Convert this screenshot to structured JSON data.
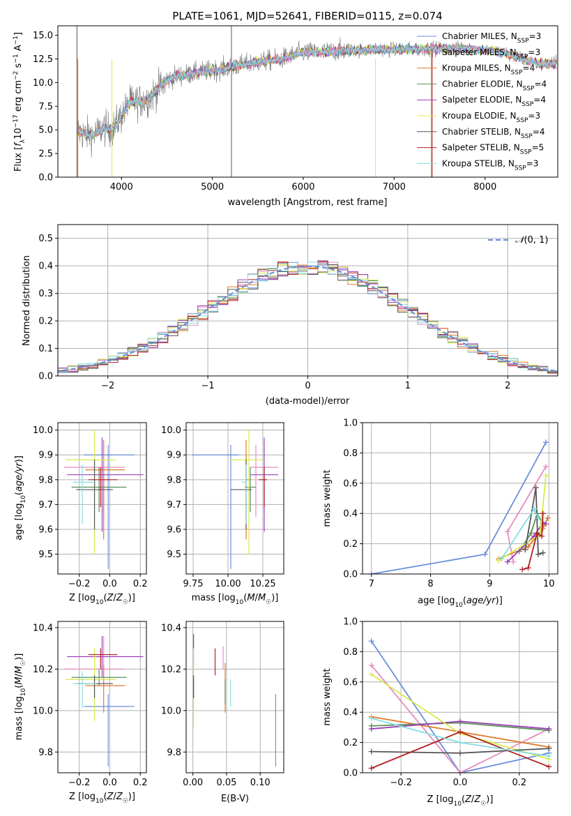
{
  "colors": {
    "palette": [
      "#6a8fdb",
      "#e58bbf",
      "#e07b2b",
      "#5a8f5a",
      "#9b3fb6",
      "#d8ea4c",
      "#555555",
      "#b11f23",
      "#85dde0"
    ],
    "normal_line": "#6a8fdb",
    "grid": "#b0b0b0",
    "spectrum_data": "#808080"
  },
  "chart_data": [
    {
      "id": "spectrum",
      "type": "line",
      "title": "PLATE=1061, MJD=52641, FIBERID=0115, z=0.074",
      "xlabel": "wavelength [Angstrom, rest frame]",
      "ylabel": "Flux [f_λ 10^-17 erg cm^-2 s^-1 A^-1]",
      "xlim": [
        3300,
        8800
      ],
      "ylim": [
        0,
        16
      ],
      "xticks": [
        4000,
        5000,
        6000,
        7000,
        8000
      ],
      "yticks": [
        0.0,
        2.5,
        5.0,
        7.5,
        10.0,
        12.5,
        15.0
      ],
      "legend_position": "upper-right",
      "grid": false,
      "legend": [
        "Chabrier MILES, N_SSP=3",
        "Salpeter MILES, N_SSP=3",
        "Kroupa MILES, N_SSP=4",
        "Chabrier ELODIE, N_SSP=4",
        "Salpeter ELODIE, N_SSP=4",
        "Kroupa ELODIE, N_SSP=3",
        "Chabrier STELIB, N_SSP=4",
        "Salpeter STELIB, N_SSP=5",
        "Kroupa STELIB, N_SSP=3"
      ],
      "continuum": {
        "x": [
          3500,
          3600,
          3700,
          3800,
          3900,
          4000,
          4100,
          4200,
          4300,
          4400,
          4500,
          4600,
          4800,
          5000,
          5200,
          5400,
          5600,
          5800,
          6000,
          6200,
          6400,
          6600,
          6800,
          7000,
          7200,
          7400,
          7600,
          7800,
          8000,
          8200,
          8400,
          8600
        ],
        "y": [
          5.0,
          4.5,
          4.5,
          5.2,
          5.0,
          6.5,
          8.0,
          8.0,
          8.3,
          9.3,
          10.2,
          10.7,
          11.0,
          11.3,
          11.6,
          12.0,
          12.3,
          12.6,
          13.2,
          13.2,
          13.4,
          13.4,
          13.5,
          13.5,
          13.5,
          13.6,
          13.6,
          13.6,
          13.4,
          13.2,
          12.5,
          12.0
        ]
      }
    },
    {
      "id": "residuals",
      "type": "line",
      "xlabel": "(data-model)/error",
      "ylabel": "Normed distribution",
      "xlim": [
        -2.5,
        2.5
      ],
      "ylim": [
        0,
        0.55
      ],
      "xticks": [
        -2,
        -1,
        0,
        1,
        2
      ],
      "yticks": [
        0.0,
        0.1,
        0.2,
        0.3,
        0.4,
        0.5
      ],
      "legend": [
        "𝒩(0,1)"
      ],
      "legend_position": "upper-right",
      "grid": true,
      "bin_width": 0.1,
      "normal_peak": 0.399
    },
    {
      "id": "age-vs-Z",
      "type": "scatter",
      "xlabel": "Z [log10(Z/Z☉)]",
      "ylabel": "age [log10(age/yr)]",
      "xlim": [
        -0.34,
        0.24
      ],
      "ylim": [
        9.42,
        10.03
      ],
      "xticks": [
        -0.2,
        0.0,
        0.2
      ],
      "yticks": [
        9.5,
        9.6,
        9.7,
        9.8,
        9.9,
        10.0
      ],
      "grid": true,
      "points": [
        {
          "x": -0.01,
          "xerr": [
            0.16,
            0.17
          ],
          "y": 9.9,
          "yerr": [
            0.46,
            0.04
          ]
        },
        {
          "x": -0.04,
          "xerr": [
            0.26,
            0.14
          ],
          "y": 9.85,
          "yerr": [
            0.2,
            0.0
          ]
        },
        {
          "x": -0.04,
          "xerr": [
            0.12,
            0.14
          ],
          "y": 9.84,
          "yerr": [
            0.28,
            0.12
          ]
        },
        {
          "x": -0.07,
          "xerr": [
            0.18,
            0.18
          ],
          "y": 9.77,
          "yerr": [
            0.1,
            0.08
          ]
        },
        {
          "x": -0.05,
          "xerr": [
            0.23,
            0.27
          ],
          "y": 9.82,
          "yerr": [
            0.23,
            0.15
          ]
        },
        {
          "x": -0.1,
          "xerr": [
            0.19,
            0.14
          ],
          "y": 9.88,
          "yerr": [
            0.38,
            0.12
          ]
        },
        {
          "x": -0.1,
          "xerr": [
            0.12,
            0.12
          ],
          "y": 9.76,
          "yerr": [
            0.16,
            0.12
          ]
        },
        {
          "x": -0.06,
          "xerr": [
            0.08,
            0.11
          ],
          "y": 9.8,
          "yerr": [
            0.11,
            0.05
          ]
        },
        {
          "x": -0.18,
          "xerr": [
            0.06,
            0.09
          ],
          "y": 9.79,
          "yerr": [
            0.17,
            0.07
          ]
        }
      ]
    },
    {
      "id": "age-vs-mass",
      "type": "scatter",
      "xlabel": "mass [log10(M/M☉)]",
      "ylabel": "",
      "xlim": [
        9.7,
        10.4
      ],
      "ylim": [
        9.42,
        10.03
      ],
      "xticks": [
        9.75,
        10.0,
        10.25
      ],
      "yticks": [
        9.5,
        9.6,
        9.7,
        9.8,
        9.9,
        10.0
      ],
      "grid": true,
      "points": [
        {
          "x": 10.02,
          "xerr": [
            0.28,
            0.06
          ],
          "y": 9.9,
          "yerr": [
            0.46,
            0.04
          ]
        },
        {
          "x": 10.2,
          "xerr": [
            0.04,
            0.16
          ],
          "y": 9.85,
          "yerr": [
            0.2,
            0.09
          ]
        },
        {
          "x": 10.13,
          "xerr": [
            0.0,
            0.03
          ],
          "y": 9.8,
          "yerr": [
            0.24,
            0.16
          ]
        },
        {
          "x": 10.16,
          "xerr": [
            0.04,
            0.04
          ],
          "y": 9.77,
          "yerr": [
            0.1,
            0.08
          ]
        },
        {
          "x": 10.26,
          "xerr": [
            0.1,
            0.1
          ],
          "y": 9.82,
          "yerr": [
            0.23,
            0.15
          ]
        },
        {
          "x": 10.15,
          "xerr": [
            0.14,
            0.1
          ],
          "y": 9.88,
          "yerr": [
            0.38,
            0.12
          ]
        },
        {
          "x": 10.13,
          "xerr": [
            0.11,
            0.04
          ],
          "y": 9.76,
          "yerr": [
            0.16,
            0.12
          ]
        },
        {
          "x": 10.26,
          "xerr": [
            0.04,
            0.02
          ],
          "y": 9.8,
          "yerr": [
            0.11,
            0.05
          ]
        },
        {
          "x": 10.13,
          "xerr": [
            0.03,
            0.0
          ],
          "y": 9.79,
          "yerr": [
            0.17,
            0.07
          ]
        }
      ]
    },
    {
      "id": "massweight-vs-age",
      "type": "line",
      "xlabel": "age [log10(age/yr)]",
      "ylabel": "mass weight",
      "xlim": [
        6.85,
        10.15
      ],
      "ylim": [
        0,
        1
      ],
      "xticks": [
        7,
        8,
        9,
        10
      ],
      "yticks": [
        0.0,
        0.2,
        0.4,
        0.6,
        0.8,
        1.0
      ],
      "grid": true,
      "series": [
        {
          "x": [
            7.0,
            8.92,
            9.95
          ],
          "y": [
            0.0,
            0.13,
            0.87
          ]
        },
        {
          "x": [
            9.4,
            9.3,
            9.95
          ],
          "y": [
            0.08,
            0.28,
            0.71
          ]
        },
        {
          "x": [
            9.15,
            9.65,
            9.9,
            9.98
          ],
          "y": [
            0.1,
            0.18,
            0.3,
            0.37
          ]
        },
        {
          "x": [
            9.5,
            9.7,
            9.8,
            9.9
          ],
          "y": [
            0.15,
            0.27,
            0.4,
            0.33
          ]
        },
        {
          "x": [
            9.3,
            9.75,
            9.9,
            9.95
          ],
          "y": [
            0.08,
            0.25,
            0.34,
            0.33
          ]
        },
        {
          "x": [
            9.15,
            9.85,
            9.95
          ],
          "y": [
            0.09,
            0.26,
            0.65
          ]
        },
        {
          "x": [
            9.6,
            9.78,
            9.82,
            9.9
          ],
          "y": [
            0.16,
            0.57,
            0.13,
            0.14
          ]
        },
        {
          "x": [
            9.55,
            9.65,
            9.8,
            9.88,
            9.9
          ],
          "y": [
            0.03,
            0.04,
            0.27,
            0.25,
            0.4
          ]
        },
        {
          "x": [
            9.2,
            9.75,
            9.82
          ],
          "y": [
            0.1,
            0.43,
            0.37
          ]
        }
      ]
    },
    {
      "id": "mass-vs-Z",
      "type": "scatter",
      "xlabel": "Z [log10(Z/Z☉)]",
      "ylabel": "mass [log10(M/M☉)]",
      "xlim": [
        -0.34,
        0.24
      ],
      "ylim": [
        9.7,
        10.43
      ],
      "xticks": [
        -0.2,
        0.0,
        0.2
      ],
      "yticks": [
        9.8,
        10.0,
        10.2,
        10.4
      ],
      "grid": true,
      "points": [
        {
          "x": -0.01,
          "xerr": [
            0.16,
            0.17
          ],
          "y": 10.02,
          "yerr": [
            0.29,
            0.06
          ]
        },
        {
          "x": -0.04,
          "xerr": [
            0.26,
            0.14
          ],
          "y": 10.2,
          "yerr": [
            0.04,
            0.16
          ]
        },
        {
          "x": -0.04,
          "xerr": [
            0.12,
            0.14
          ],
          "y": 10.12,
          "yerr": [
            0.13,
            0.1
          ]
        },
        {
          "x": -0.07,
          "xerr": [
            0.18,
            0.18
          ],
          "y": 10.16,
          "yerr": [
            0.04,
            0.04
          ]
        },
        {
          "x": -0.05,
          "xerr": [
            0.23,
            0.27
          ],
          "y": 10.26,
          "yerr": [
            0.1,
            0.1
          ]
        },
        {
          "x": -0.1,
          "xerr": [
            0.19,
            0.14
          ],
          "y": 10.15,
          "yerr": [
            0.2,
            0.15
          ]
        },
        {
          "x": -0.1,
          "xerr": [
            0.12,
            0.12
          ],
          "y": 10.13,
          "yerr": [
            0.07,
            0.04
          ]
        },
        {
          "x": -0.06,
          "xerr": [
            0.08,
            0.11
          ],
          "y": 10.27,
          "yerr": [
            0.07,
            0.03
          ]
        },
        {
          "x": -0.18,
          "xerr": [
            0.06,
            0.09
          ],
          "y": 10.13,
          "yerr": [
            0.12,
            0.06
          ]
        }
      ]
    },
    {
      "id": "mass-vs-ebv",
      "type": "scatter",
      "xlabel": "E(B-V)",
      "ylabel": "",
      "xlim": [
        -0.01,
        0.135
      ],
      "ylim": [
        9.7,
        10.43
      ],
      "xticks": [
        0.0,
        0.05,
        0.1
      ],
      "yticks": [
        9.8,
        10.0,
        10.2,
        10.4
      ],
      "grid": true,
      "points": [
        {
          "x": 0.123,
          "y": 9.92,
          "yerr": [
            0.19,
            0.16
          ]
        },
        {
          "x": 0.045,
          "y": 10.25,
          "yerr": [
            0.05,
            0.06
          ]
        },
        {
          "x": 0.048,
          "y": 10.12,
          "yerr": [
            0.13,
            0.11
          ]
        },
        {
          "x": 0.048,
          "y": 10.1,
          "yerr": [
            0.07,
            0.05
          ]
        },
        {
          "x": 0.001,
          "y": 10.26,
          "yerr": [
            0.05,
            0.11
          ]
        },
        {
          "x": 0.001,
          "y": 10.09,
          "yerr": [
            0.17,
            0.21
          ]
        },
        {
          "x": 0.001,
          "y": 10.13,
          "yerr": [
            0.07,
            0.04
          ]
        },
        {
          "x": 0.033,
          "y": 10.24,
          "yerr": [
            0.07,
            0.06
          ]
        },
        {
          "x": 0.056,
          "y": 10.08,
          "yerr": [
            0.06,
            0.07
          ]
        }
      ]
    },
    {
      "id": "massweight-vs-Z",
      "type": "line",
      "xlabel": "Z [log10(Z/Z☉)]",
      "ylabel": "mass weight",
      "xlim": [
        -0.33,
        0.33
      ],
      "ylim": [
        0,
        1
      ],
      "xticks": [
        -0.2,
        0.0,
        0.2
      ],
      "yticks": [
        0.0,
        0.2,
        0.4,
        0.6,
        0.8,
        1.0
      ],
      "grid": true,
      "series": [
        {
          "x": [
            -0.3,
            0.0,
            0.3
          ],
          "y": [
            0.87,
            0.0,
            0.13
          ]
        },
        {
          "x": [
            -0.3,
            0.0,
            0.3
          ],
          "y": [
            0.71,
            0.0,
            0.29
          ]
        },
        {
          "x": [
            -0.3,
            0.0,
            0.3
          ],
          "y": [
            0.37,
            0.27,
            0.17
          ]
        },
        {
          "x": [
            -0.3,
            0.0,
            0.3
          ],
          "y": [
            0.31,
            0.33,
            0.28
          ]
        },
        {
          "x": [
            -0.3,
            0.0,
            0.3
          ],
          "y": [
            0.29,
            0.34,
            0.29
          ]
        },
        {
          "x": [
            -0.3,
            0.0,
            0.3
          ],
          "y": [
            0.65,
            0.26,
            0.09
          ]
        },
        {
          "x": [
            -0.3,
            0.0,
            0.3
          ],
          "y": [
            0.14,
            0.13,
            0.16
          ]
        },
        {
          "x": [
            -0.3,
            0.0,
            0.3
          ],
          "y": [
            0.03,
            0.27,
            0.04
          ]
        },
        {
          "x": [
            -0.3,
            0.0,
            0.3
          ],
          "y": [
            0.36,
            0.2,
            0.11
          ]
        }
      ]
    }
  ]
}
